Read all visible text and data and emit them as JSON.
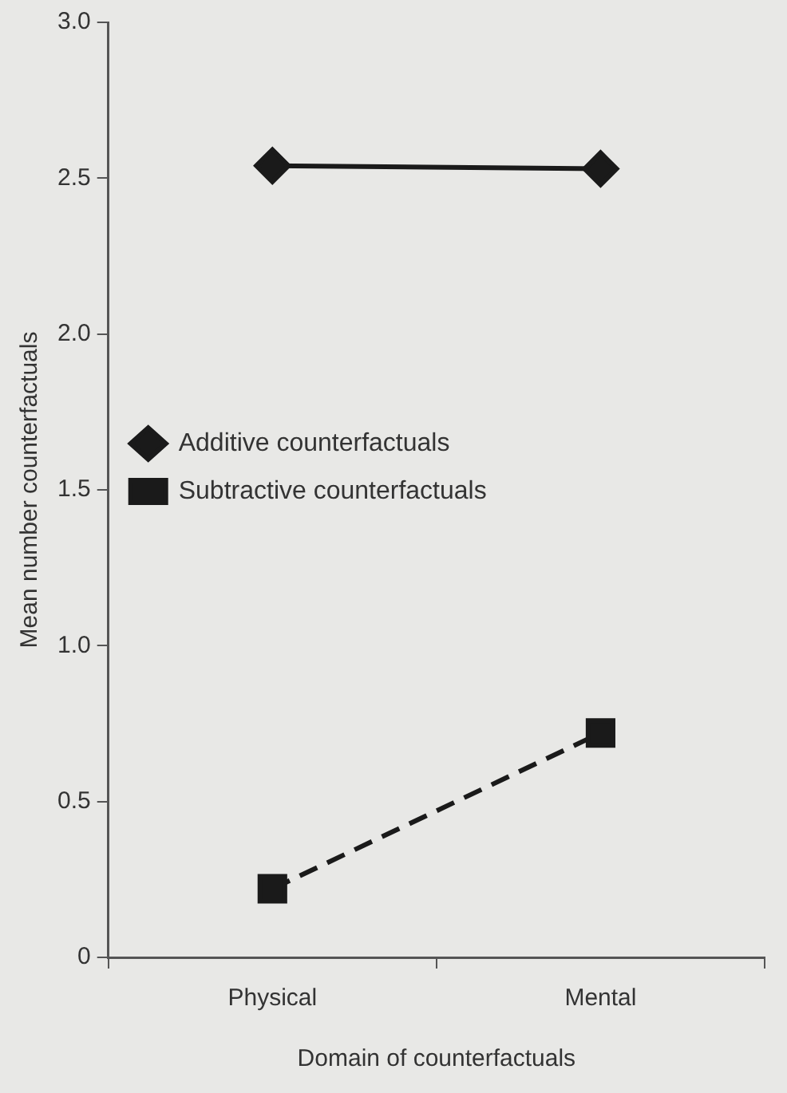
{
  "chart_data": {
    "type": "line",
    "xlabel": "Domain of counterfactuals",
    "ylabel": "Mean number counterfactuals",
    "categories": [
      "Physical",
      "Mental"
    ],
    "series": [
      {
        "name": "Additive counterfactuals",
        "color": "#1a1a1a",
        "values": [
          2.54,
          2.53
        ],
        "marker": "diamond",
        "line_style": "solid"
      },
      {
        "name": "Subtractive counterfactuals",
        "color": "#1a1a1a",
        "values": [
          0.22,
          0.72
        ],
        "marker": "square",
        "line_style": "dashed"
      }
    ],
    "ylim": [
      0,
      3
    ],
    "yticks": [
      0,
      0.5,
      {
        "value": 1,
        "label": "1.0"
      },
      1.5,
      {
        "value": 2,
        "label": "2.0"
      },
      2.5,
      {
        "value": 3,
        "label": "3.0"
      }
    ],
    "grid": false,
    "legend": "left"
  }
}
